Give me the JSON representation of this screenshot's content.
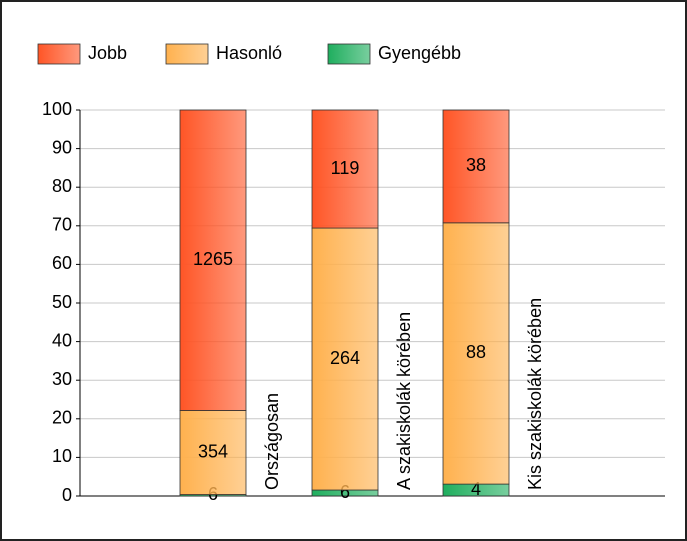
{
  "chart_data": {
    "type": "bar",
    "stacked": "percent",
    "categories": [
      "Országosan",
      "A szakiskolák körében",
      "Kis szakiskolák körében"
    ],
    "series": [
      {
        "name": "Gyengébb",
        "color": "#1fae5e",
        "values": [
          6,
          6,
          4
        ]
      },
      {
        "name": "Hasonló",
        "color": "#ffb14e",
        "values": [
          354,
          264,
          88
        ]
      },
      {
        "name": "Jobb",
        "color": "#ff5526",
        "values": [
          1265,
          119,
          38
        ]
      }
    ],
    "legend_order": [
      "Jobb",
      "Hasonló",
      "Gyengébb"
    ],
    "ylim": [
      0,
      100
    ],
    "yticks": [
      0,
      10,
      20,
      30,
      40,
      50,
      60,
      70,
      80,
      90,
      100
    ],
    "grid": true
  }
}
